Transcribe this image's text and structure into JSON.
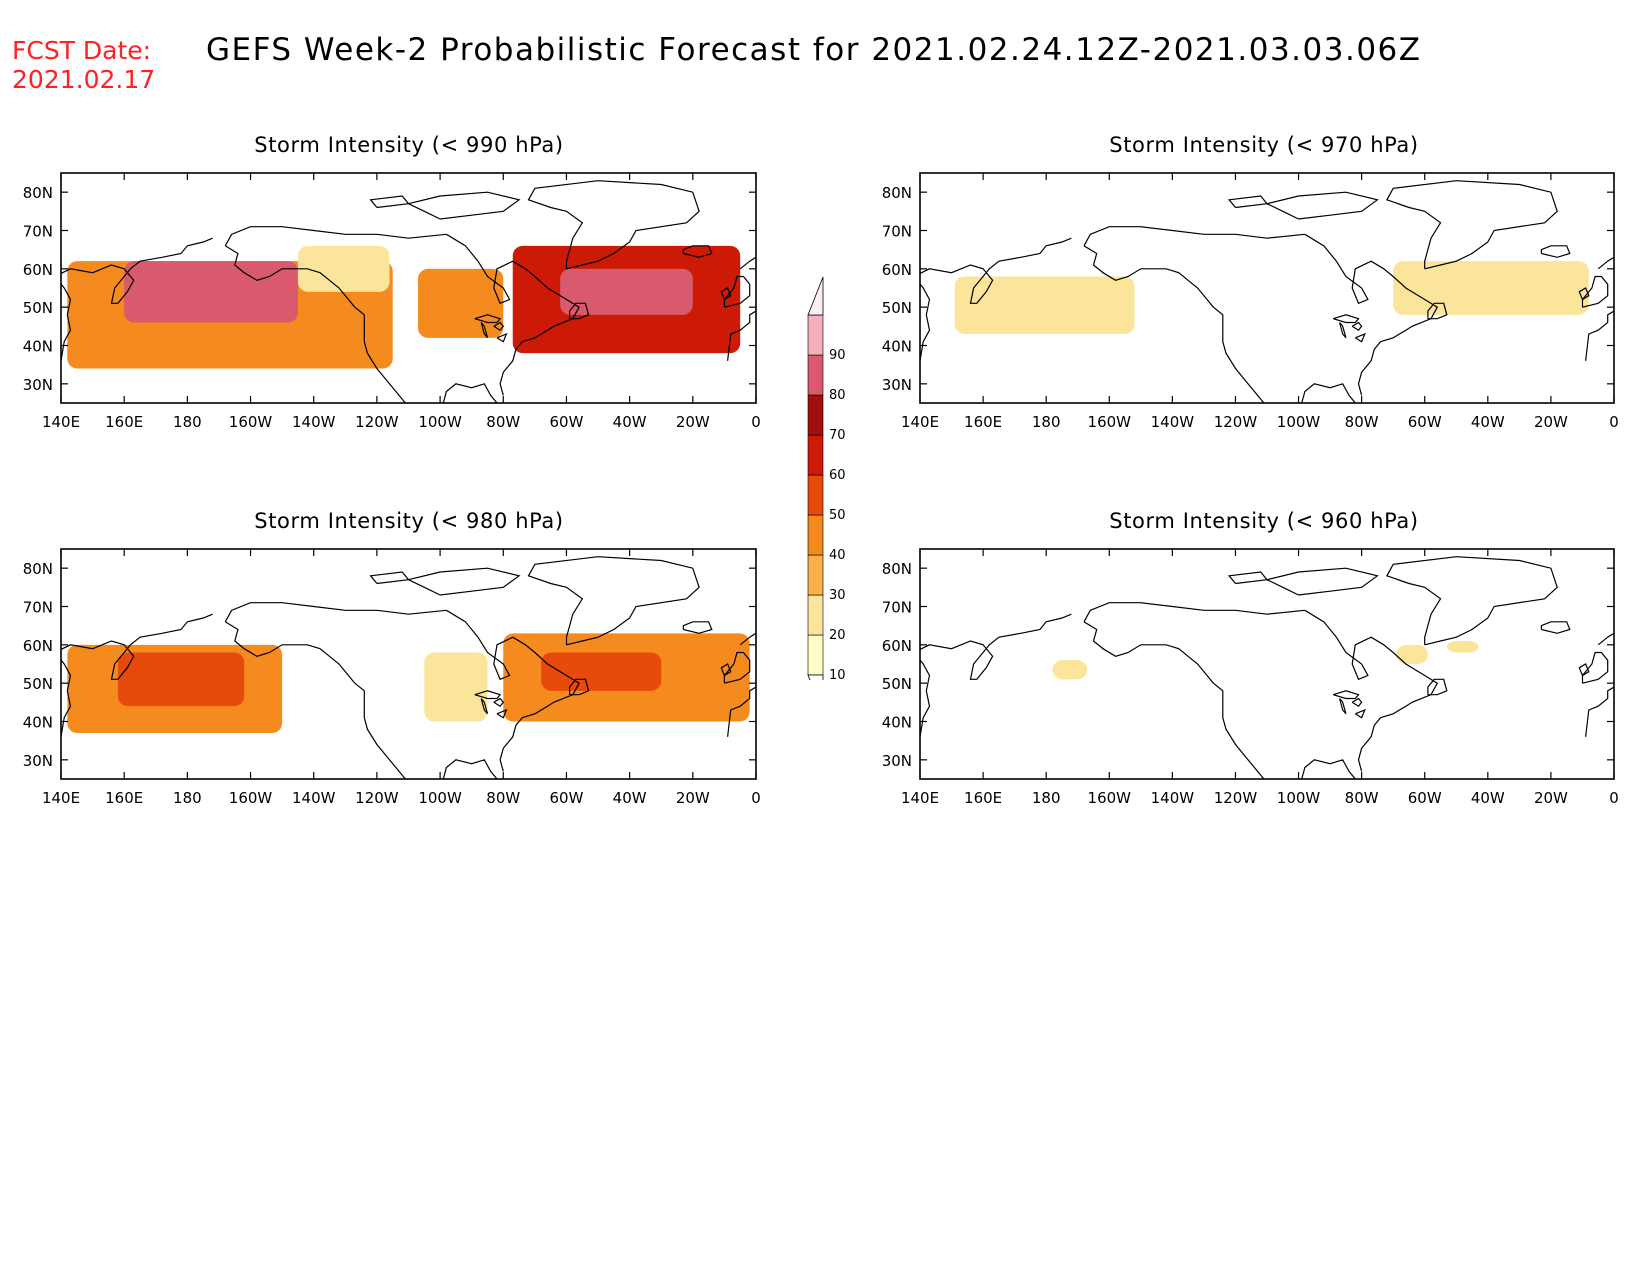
{
  "header": {
    "fcst_label": "FCST Date:",
    "fcst_date": "2021.02.17",
    "title": "GEFS Week-2 Probabilistic Forecast for 2021.02.24.12Z-2021.03.03.06Z"
  },
  "map": {
    "lon_labels": [
      "140E",
      "160E",
      "180",
      "160W",
      "140W",
      "120W",
      "100W",
      "80W",
      "60W",
      "40W",
      "20W",
      "0"
    ],
    "lat_labels": [
      "30N",
      "40N",
      "50N",
      "60N",
      "70N",
      "80N"
    ],
    "lon_range_deg_east": [
      140,
      360
    ],
    "lat_range": [
      25,
      85
    ]
  },
  "panels": [
    {
      "id": "p990",
      "title": "Storm Intensity (< 990 hPa)",
      "regions": [
        {
          "lon": [
            142,
            245
          ],
          "lat": [
            34,
            62
          ],
          "level": "moderate"
        },
        {
          "lon": [
            160,
            215
          ],
          "lat": [
            46,
            62
          ],
          "level": "very-high"
        },
        {
          "lon": [
            215,
            244
          ],
          "lat": [
            54,
            66
          ],
          "level": "low"
        },
        {
          "lon": [
            253,
            280
          ],
          "lat": [
            42,
            60
          ],
          "level": "moderate"
        },
        {
          "lon": [
            283,
            355
          ],
          "lat": [
            38,
            66
          ],
          "level": "high"
        },
        {
          "lon": [
            298,
            340
          ],
          "lat": [
            48,
            60
          ],
          "level": "very-high"
        }
      ]
    },
    {
      "id": "p980",
      "title": "Storm Intensity (< 980 hPa)",
      "regions": [
        {
          "lon": [
            142,
            210
          ],
          "lat": [
            37,
            60
          ],
          "level": "moderate"
        },
        {
          "lon": [
            158,
            198
          ],
          "lat": [
            44,
            58
          ],
          "level": "high-moderate"
        },
        {
          "lon": [
            255,
            275
          ],
          "lat": [
            40,
            58
          ],
          "level": "low"
        },
        {
          "lon": [
            280,
            358
          ],
          "lat": [
            40,
            63
          ],
          "level": "moderate"
        },
        {
          "lon": [
            292,
            330
          ],
          "lat": [
            48,
            58
          ],
          "level": "high-moderate"
        }
      ]
    },
    {
      "id": "p970",
      "title": "Storm Intensity (< 970 hPa)",
      "regions": [
        {
          "lon": [
            151,
            208
          ],
          "lat": [
            43,
            58
          ],
          "level": "low"
        },
        {
          "lon": [
            290,
            352
          ],
          "lat": [
            48,
            62
          ],
          "level": "low"
        }
      ]
    },
    {
      "id": "p960",
      "title": "Storm Intensity (< 960 hPa)",
      "regions": [
        {
          "lon": [
            182,
            193
          ],
          "lat": [
            51,
            56
          ],
          "level": "low"
        },
        {
          "lon": [
            291,
            301
          ],
          "lat": [
            55,
            60
          ],
          "level": "low"
        },
        {
          "lon": [
            307,
            317
          ],
          "lat": [
            58,
            61
          ],
          "level": "low"
        }
      ]
    }
  ],
  "colorbar": {
    "labels": [
      "10",
      "20",
      "30",
      "40",
      "50",
      "60",
      "70",
      "80",
      "90"
    ],
    "colors": [
      "#fffcc8",
      "#fbe59b",
      "#fbb04a",
      "#f58a1f",
      "#e74a0b",
      "#cc1a06",
      "#a30f0f",
      "#d85a6c",
      "#f3b0ba"
    ],
    "levels": {
      "low": "#fbe59b",
      "moderate": "#f58a1f",
      "high-moderate": "#e74a0b",
      "high": "#cc1a06",
      "very-high": "#d85a6c"
    }
  }
}
